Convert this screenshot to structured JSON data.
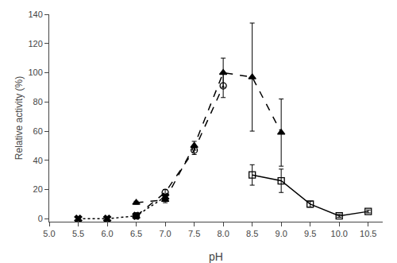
{
  "chart_data": {
    "type": "line",
    "xlabel": "pH",
    "ylabel": "Relative activity (%)",
    "series": [
      {
        "x": [
          5.5,
          6.0,
          6.5,
          7.0
        ],
        "values": [
          0,
          0,
          2,
          15
        ],
        "color": "#000000",
        "marker": "x",
        "line_style": "dotted"
      },
      {
        "x": [
          6.5,
          7.0,
          7.5,
          8.0
        ],
        "values": [
          2,
          18,
          47,
          91
        ],
        "yerr": [
          0,
          2,
          3,
          8
        ],
        "color": "#000000",
        "marker": "circle-open",
        "line_style": "dashed"
      },
      {
        "x": [
          6.5,
          7.0,
          7.5,
          8.0,
          8.5,
          9.0
        ],
        "values": [
          11,
          13,
          50,
          100,
          97,
          59
        ],
        "yerr": [
          1,
          2,
          3,
          10,
          37,
          23
        ],
        "color": "#000000",
        "marker": "triangle-up",
        "line_style": "dashed"
      },
      {
        "x": [
          8.5,
          9.0,
          9.5,
          10.0,
          10.5
        ],
        "values": [
          30,
          26,
          10,
          2,
          5
        ],
        "yerr": [
          7,
          8,
          2,
          1,
          1
        ],
        "color": "#000000",
        "marker": "square-open",
        "line_style": "solid"
      }
    ],
    "xlim": [
      5.0,
      10.75
    ],
    "ylim": [
      -2,
      140
    ],
    "xticks": [
      {
        "value": 5.0,
        "label": "5.0"
      },
      5.5,
      {
        "value": 6.0,
        "label": "6.0"
      },
      6.5,
      {
        "value": 7.0,
        "label": "7.0"
      },
      7.5,
      {
        "value": 8.0,
        "label": "8.0"
      },
      8.5,
      {
        "value": 9.0,
        "label": "9.0"
      },
      9.5,
      {
        "value": 10.0,
        "label": "10.0"
      },
      10.5
    ],
    "yticks": [
      0,
      20,
      40,
      60,
      80,
      100,
      120,
      140
    ],
    "grid": false
  }
}
